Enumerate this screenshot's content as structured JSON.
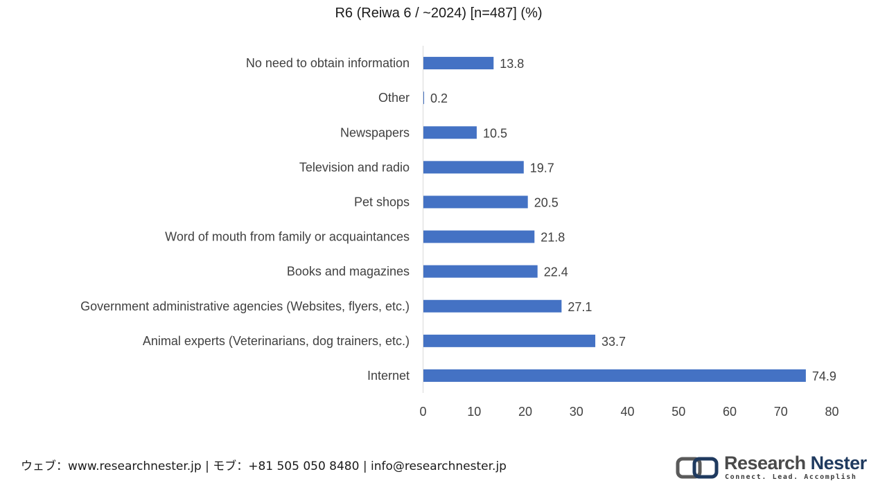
{
  "chart_data": {
    "type": "bar",
    "orientation": "horizontal",
    "title": "R6 (Reiwa 6 / ~2024) [n=487] (%)",
    "categories": [
      "No need to obtain information",
      "Other",
      "Newspapers",
      "Television and radio",
      "Pet shops",
      "Word of mouth from family or acquaintances",
      "Books and magazines",
      "Government administrative agencies (Websites, flyers, etc.)",
      "Animal experts (Veterinarians, dog trainers, etc.)",
      "Internet"
    ],
    "values": [
      13.8,
      0.2,
      10.5,
      19.7,
      20.5,
      21.8,
      22.4,
      27.1,
      33.7,
      74.9
    ],
    "xlim": [
      0,
      80
    ],
    "xticks": [
      0,
      10,
      20,
      30,
      40,
      50,
      60,
      70,
      80
    ],
    "bar_color": "#4472C4",
    "grid": false,
    "xlabel": "",
    "ylabel": ""
  },
  "footer": {
    "contact": "ウェブ：www.researchnester.jp | モブ：+81 505 050 8480 | info@researchnester.jp"
  },
  "logo": {
    "name_part1": "Research",
    "name_part2": "Nester",
    "tagline": "Connect. Lead. Accomplish"
  }
}
